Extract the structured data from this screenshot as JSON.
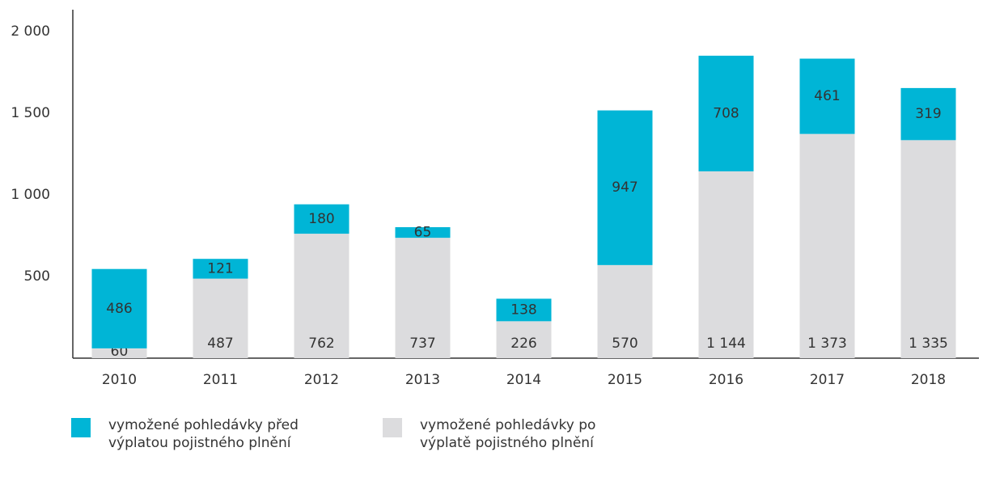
{
  "chart_data": {
    "type": "stacked_bar",
    "categories": [
      "2010",
      "2011",
      "2012",
      "2013",
      "2014",
      "2015",
      "2016",
      "2017",
      "2018"
    ],
    "series": [
      {
        "name": "vymožené pohledávky po výplatě pojistného plnění",
        "color": "#dcdcde",
        "values": [
          60,
          487,
          762,
          737,
          226,
          570,
          1144,
          1373,
          1335
        ],
        "value_labels": [
          "60",
          "487",
          "762",
          "737",
          "226",
          "570",
          "1 144",
          "1 373",
          "1 335"
        ]
      },
      {
        "name": "vymožené pohledávky před výplatou pojistného plnění",
        "color": "#00b5d6",
        "values": [
          486,
          121,
          180,
          65,
          138,
          947,
          708,
          461,
          319
        ]
      }
    ],
    "ylim": [
      0,
      2000
    ],
    "yticks": [
      500,
      {
        "value": 1000,
        "label": "1 000"
      },
      {
        "value": 1500,
        "label": "1 500"
      },
      {
        "value": 2000,
        "label": "2 000"
      }
    ],
    "legend": "bottom-left"
  }
}
